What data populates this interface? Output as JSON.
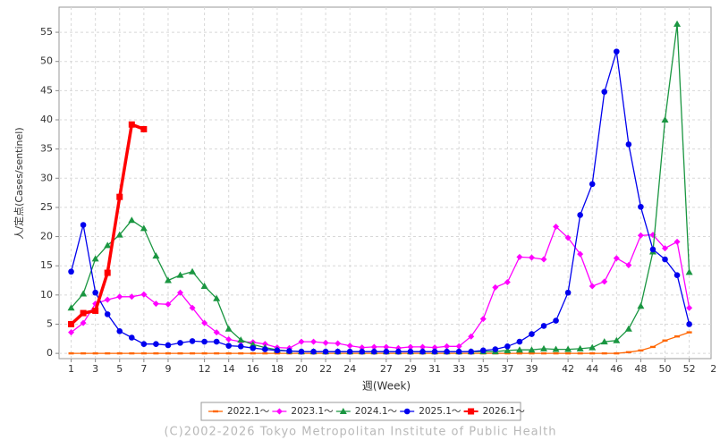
{
  "chart_data": {
    "type": "line",
    "x_label": "週(Week)",
    "y_label": "人/定点(Cases/sentinel)",
    "footer": "(C)2002-2026 Tokyo Metropolitan Institute of Public Health",
    "x": [
      1,
      2,
      3,
      4,
      5,
      6,
      7,
      8,
      9,
      10,
      11,
      12,
      13,
      14,
      15,
      16,
      17,
      18,
      19,
      20,
      21,
      22,
      23,
      24,
      25,
      26,
      27,
      28,
      29,
      30,
      31,
      32,
      33,
      34,
      35,
      36,
      37,
      38,
      39,
      40,
      41,
      42,
      43,
      44,
      45,
      46,
      47,
      48,
      49,
      50,
      51,
      52
    ],
    "xlim": [
      0,
      53.8
    ],
    "xticks": [
      1,
      3,
      5,
      7,
      9,
      12,
      14,
      16,
      18,
      20,
      22,
      24,
      27,
      29,
      31,
      33,
      35,
      37,
      39,
      42,
      44,
      46,
      48,
      50,
      52,
      {
        "value": 54,
        "label": "2"
      }
    ],
    "ylim": [
      -0.9,
      59.3
    ],
    "yticks": [
      0,
      5,
      10,
      15,
      20,
      25,
      30,
      35,
      40,
      45,
      50,
      55
    ],
    "grid": true,
    "legend": "bottom",
    "series": [
      {
        "name": "2022.1～",
        "color": "#ff6600",
        "marker": "dash",
        "line_width": 1.3,
        "values": [
          0,
          0,
          0,
          0,
          0,
          0,
          0,
          0,
          0,
          0,
          0,
          0,
          0,
          0,
          0,
          0,
          0,
          0,
          0,
          0,
          0,
          0,
          0,
          0,
          0,
          0,
          0,
          0,
          0,
          0,
          0,
          0,
          0,
          0,
          0,
          0,
          0,
          0,
          0,
          0,
          0,
          0,
          0,
          0,
          0,
          0,
          0.2,
          0.5,
          1.1,
          2.2,
          2.9,
          3.6
        ]
      },
      {
        "name": "2023.1～",
        "color": "#ff00ff",
        "marker": "diamond",
        "line_width": 1.3,
        "values": [
          3.6,
          5.2,
          8.5,
          9.2,
          9.7,
          9.7,
          10.1,
          8.5,
          8.4,
          10.4,
          7.8,
          5.2,
          3.6,
          2.4,
          2.0,
          1.9,
          1.6,
          1.0,
          0.9,
          2.0,
          2.0,
          1.8,
          1.7,
          1.3,
          1.0,
          1.1,
          1.1,
          0.9,
          1.1,
          1.1,
          1.0,
          1.2,
          1.2,
          2.9,
          5.9,
          11.3,
          12.2,
          16.5,
          16.4,
          16.1,
          21.7,
          19.8,
          17.0,
          11.5,
          12.3,
          16.3,
          15.1,
          20.2,
          20.3,
          18.0,
          19.1,
          7.8
        ]
      },
      {
        "name": "2024.1～",
        "color": "#1a9641",
        "marker": "triangle",
        "line_width": 1.3,
        "values": [
          7.8,
          10.2,
          16.2,
          18.5,
          20.3,
          22.8,
          21.4,
          16.7,
          12.5,
          13.4,
          14.0,
          11.5,
          9.4,
          4.2,
          2.3,
          1.5,
          1.0,
          0.6,
          0.4,
          0.3,
          0.3,
          0.3,
          0.3,
          0.3,
          0.3,
          0.3,
          0.3,
          0.3,
          0.3,
          0.3,
          0.3,
          0.3,
          0.3,
          0.3,
          0.3,
          0.3,
          0.5,
          0.6,
          0.6,
          0.8,
          0.7,
          0.7,
          0.8,
          1.0,
          2.0,
          2.2,
          4.2,
          8.1,
          17.4,
          40.0,
          56.4,
          13.9
        ]
      },
      {
        "name": "2025.1～",
        "color": "#0000ee",
        "marker": "circle",
        "line_width": 1.3,
        "values": [
          14.0,
          22.0,
          10.4,
          6.7,
          3.8,
          2.7,
          1.6,
          1.6,
          1.4,
          1.8,
          2.1,
          2.0,
          2.0,
          1.3,
          1.2,
          0.9,
          0.7,
          0.5,
          0.4,
          0.3,
          0.3,
          0.3,
          0.3,
          0.3,
          0.3,
          0.3,
          0.3,
          0.3,
          0.3,
          0.3,
          0.3,
          0.3,
          0.3,
          0.3,
          0.5,
          0.7,
          1.2,
          2.0,
          3.3,
          4.7,
          5.6,
          10.4,
          23.7,
          29.0,
          44.8,
          51.7,
          35.8,
          25.1,
          17.8,
          16.1,
          13.4,
          5.0
        ]
      },
      {
        "name": "2026.1～",
        "color": "#ff0000",
        "marker": "square",
        "line_width": 3.5,
        "values": [
          5.0,
          6.9,
          7.3,
          13.8,
          26.8,
          39.2,
          38.4,
          null,
          null,
          null,
          null,
          null,
          null,
          null,
          null,
          null,
          null,
          null,
          null,
          null,
          null,
          null,
          null,
          null,
          null,
          null,
          null,
          null,
          null,
          null,
          null,
          null,
          null,
          null,
          null,
          null,
          null,
          null,
          null,
          null,
          null,
          null,
          null,
          null,
          null,
          null,
          null,
          null,
          null,
          null,
          null,
          null
        ]
      }
    ]
  }
}
